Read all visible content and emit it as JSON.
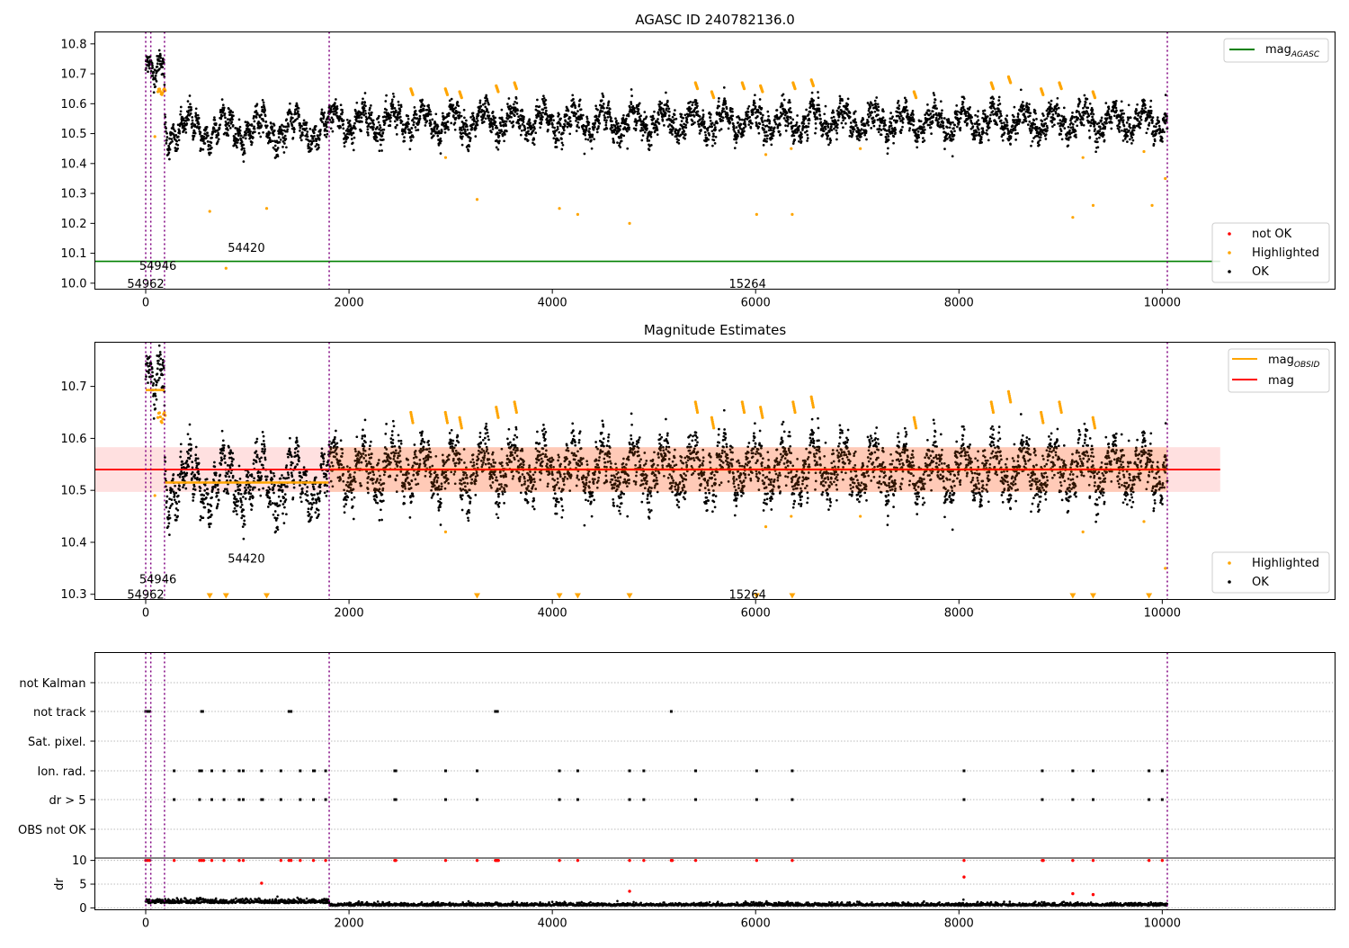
{
  "chart_data": [
    {
      "type": "scatter",
      "title": "AGASC ID 240782136.0",
      "xlim": [
        -500,
        11700
      ],
      "ylim": [
        9.98,
        10.84
      ],
      "yticks": [
        10.0,
        10.1,
        10.2,
        10.3,
        10.4,
        10.5,
        10.6,
        10.7,
        10.8
      ],
      "xticks": [
        0,
        2000,
        4000,
        6000,
        8000,
        10000
      ],
      "legend_upper": {
        "placement": "top-right",
        "items": [
          {
            "label": "mag",
            "sub": "AGASC",
            "color": "#008000"
          }
        ]
      },
      "legend_lower": {
        "placement": "bottom-right",
        "items": [
          {
            "label": "not OK",
            "color": "#ff0000"
          },
          {
            "label": "Highlighted",
            "color": "#ffa500"
          },
          {
            "label": "OK",
            "color": "#000000"
          }
        ]
      },
      "mag_agasc": {
        "value": 10.073,
        "x_range": [
          -500,
          10570
        ],
        "color": "#008000"
      },
      "obsid_boundaries": [
        0,
        50,
        185,
        1805,
        10050
      ],
      "obsid_labels": [
        {
          "text": "54962",
          "x": 0,
          "y": 10.0
        },
        {
          "text": "54946",
          "x": 120,
          "y": 10.06
        },
        {
          "text": "54420",
          "x": 990,
          "y": 10.12
        },
        {
          "text": "15264",
          "x": 5920,
          "y": 10.0
        }
      ],
      "outliers": [
        {
          "x": 90,
          "y": 10.49
        },
        {
          "x": 630,
          "y": 10.24
        },
        {
          "x": 790,
          "y": 10.05
        },
        {
          "x": 1190,
          "y": 10.25
        },
        {
          "x": 2950,
          "y": 10.42
        },
        {
          "x": 3260,
          "y": 10.28
        },
        {
          "x": 4070,
          "y": 10.25
        },
        {
          "x": 4250,
          "y": 10.23
        },
        {
          "x": 4760,
          "y": 10.2
        },
        {
          "x": 6010,
          "y": 10.23
        },
        {
          "x": 6100,
          "y": 10.43
        },
        {
          "x": 6360,
          "y": 10.23
        },
        {
          "x": 6350,
          "y": 10.45
        },
        {
          "x": 7030,
          "y": 10.45
        },
        {
          "x": 9120,
          "y": 10.22
        },
        {
          "x": 9220,
          "y": 10.42
        },
        {
          "x": 9320,
          "y": 10.26
        },
        {
          "x": 9820,
          "y": 10.44
        },
        {
          "x": 9900,
          "y": 10.26
        },
        {
          "x": 10030,
          "y": 10.35
        }
      ],
      "highlight_bursts": [
        {
          "x": 2620,
          "y": 10.65
        },
        {
          "x": 2960,
          "y": 10.65
        },
        {
          "x": 3100,
          "y": 10.64
        },
        {
          "x": 3460,
          "y": 10.66
        },
        {
          "x": 3640,
          "y": 10.67
        },
        {
          "x": 5420,
          "y": 10.67
        },
        {
          "x": 5580,
          "y": 10.64
        },
        {
          "x": 5880,
          "y": 10.67
        },
        {
          "x": 6060,
          "y": 10.66
        },
        {
          "x": 6380,
          "y": 10.67
        },
        {
          "x": 6560,
          "y": 10.68
        },
        {
          "x": 7570,
          "y": 10.64
        },
        {
          "x": 8330,
          "y": 10.67
        },
        {
          "x": 8500,
          "y": 10.69
        },
        {
          "x": 8820,
          "y": 10.65
        },
        {
          "x": 9000,
          "y": 10.67
        },
        {
          "x": 9330,
          "y": 10.64
        }
      ]
    },
    {
      "type": "scatter",
      "title": "Magnitude Estimates",
      "xlim": [
        -500,
        11700
      ],
      "ylim": [
        10.29,
        10.785
      ],
      "yticks": [
        10.3,
        10.4,
        10.5,
        10.6,
        10.7
      ],
      "xticks": [
        0,
        2000,
        4000,
        6000,
        8000,
        10000
      ],
      "legend_upper": {
        "placement": "top-right",
        "items": [
          {
            "label": "mag",
            "sub": "OBSID",
            "color": "#ffa500"
          },
          {
            "label": "mag",
            "color": "#ff0000"
          }
        ]
      },
      "legend_lower": {
        "placement": "bottom-right",
        "items": [
          {
            "label": "Highlighted",
            "color": "#ffa500"
          },
          {
            "label": "OK",
            "color": "#000000"
          }
        ]
      },
      "mag": {
        "value": 10.54,
        "band": [
          10.497,
          10.583
        ],
        "x_range": [
          -500,
          10570
        ],
        "color": "#ff0000"
      },
      "mag_obsid": [
        {
          "x": [
            0,
            185
          ],
          "value": 10.693
        },
        {
          "x": [
            185,
            1805
          ],
          "value": 10.515
        },
        {
          "x": [
            1805,
            10050
          ],
          "value": 10.54
        }
      ],
      "obsid_boundaries": [
        0,
        50,
        185,
        1805,
        10050
      ],
      "obsid_labels": [
        {
          "text": "54962",
          "x": 0,
          "y": 10.3
        },
        {
          "text": "54946",
          "x": 120,
          "y": 10.33
        },
        {
          "text": "54420",
          "x": 990,
          "y": 10.37
        },
        {
          "text": "15264",
          "x": 5920,
          "y": 10.3
        }
      ],
      "lower_limit_markers_x": [
        630,
        790,
        1190,
        3260,
        4070,
        4250,
        4760,
        6010,
        6360,
        9120,
        9320,
        9870
      ],
      "outliers": [
        {
          "x": 90,
          "y": 10.49
        },
        {
          "x": 2950,
          "y": 10.42
        },
        {
          "x": 6100,
          "y": 10.43
        },
        {
          "x": 6350,
          "y": 10.45
        },
        {
          "x": 7030,
          "y": 10.45
        },
        {
          "x": 9220,
          "y": 10.42
        },
        {
          "x": 9820,
          "y": 10.44
        },
        {
          "x": 10030,
          "y": 10.35
        }
      ]
    },
    {
      "type": "scatter",
      "title": "",
      "xlim": [
        -500,
        11700
      ],
      "xticks": [
        0,
        2000,
        4000,
        6000,
        8000,
        10000
      ],
      "flag_rows": [
        "not Kalman",
        "not track",
        "Sat. pixel.",
        "Ion. rad.",
        "dr > 5",
        "OBS not OK"
      ],
      "flag_points": {
        "not track": [
          0,
          20,
          40,
          550,
          560,
          1410,
          1420,
          1430,
          3440,
          3450,
          3460,
          5170
        ],
        "Ion. rad.": [
          280,
          530,
          550,
          650,
          770,
          920,
          960,
          1140,
          1330,
          1520,
          1650,
          1660,
          1770,
          2450,
          2460,
          2950,
          3260,
          4070,
          4250,
          4760,
          4900,
          5410,
          6010,
          6360,
          8050,
          8820,
          9120,
          9320,
          9870,
          10000
        ],
        "dr > 5": [
          280,
          530,
          650,
          770,
          920,
          960,
          1140,
          1150,
          1330,
          1520,
          1650,
          1770,
          2450,
          2460,
          2950,
          3260,
          4070,
          4250,
          4760,
          4900,
          5410,
          6010,
          6360,
          8050,
          8820,
          9120,
          9320,
          9870,
          10000
        ]
      },
      "dr": {
        "ylabel": "dr",
        "ylim": [
          -0.4,
          10.5
        ],
        "yticks": [
          0,
          5,
          10
        ],
        "clip_value": 10,
        "red_points": [
          {
            "x": 0,
            "y": 10
          },
          {
            "x": 20,
            "y": 10
          },
          {
            "x": 40,
            "y": 10
          },
          {
            "x": 280,
            "y": 10
          },
          {
            "x": 530,
            "y": 10
          },
          {
            "x": 550,
            "y": 10
          },
          {
            "x": 570,
            "y": 10
          },
          {
            "x": 650,
            "y": 10
          },
          {
            "x": 770,
            "y": 10
          },
          {
            "x": 920,
            "y": 10
          },
          {
            "x": 960,
            "y": 10
          },
          {
            "x": 1140,
            "y": 5.2
          },
          {
            "x": 1330,
            "y": 10
          },
          {
            "x": 1410,
            "y": 10
          },
          {
            "x": 1430,
            "y": 10
          },
          {
            "x": 1520,
            "y": 10
          },
          {
            "x": 1650,
            "y": 10
          },
          {
            "x": 1770,
            "y": 10
          },
          {
            "x": 2450,
            "y": 10
          },
          {
            "x": 2460,
            "y": 10
          },
          {
            "x": 2950,
            "y": 10
          },
          {
            "x": 3260,
            "y": 10
          },
          {
            "x": 3440,
            "y": 10
          },
          {
            "x": 3450,
            "y": 10
          },
          {
            "x": 3460,
            "y": 10
          },
          {
            "x": 3470,
            "y": 10
          },
          {
            "x": 4070,
            "y": 10
          },
          {
            "x": 4250,
            "y": 10
          },
          {
            "x": 4760,
            "y": 10
          },
          {
            "x": 4760,
            "y": 3.5
          },
          {
            "x": 4900,
            "y": 10
          },
          {
            "x": 5170,
            "y": 10
          },
          {
            "x": 5180,
            "y": 10
          },
          {
            "x": 5410,
            "y": 10
          },
          {
            "x": 6010,
            "y": 10
          },
          {
            "x": 6360,
            "y": 10
          },
          {
            "x": 8050,
            "y": 10
          },
          {
            "x": 8050,
            "y": 6.5
          },
          {
            "x": 8820,
            "y": 10
          },
          {
            "x": 8830,
            "y": 10
          },
          {
            "x": 9120,
            "y": 10
          },
          {
            "x": 9120,
            "y": 3.0
          },
          {
            "x": 9320,
            "y": 10
          },
          {
            "x": 9320,
            "y": 2.8
          },
          {
            "x": 9870,
            "y": 10
          },
          {
            "x": 10000,
            "y": 10
          }
        ]
      },
      "obsid_boundaries": [
        0,
        50,
        185,
        1805,
        10050
      ]
    }
  ]
}
